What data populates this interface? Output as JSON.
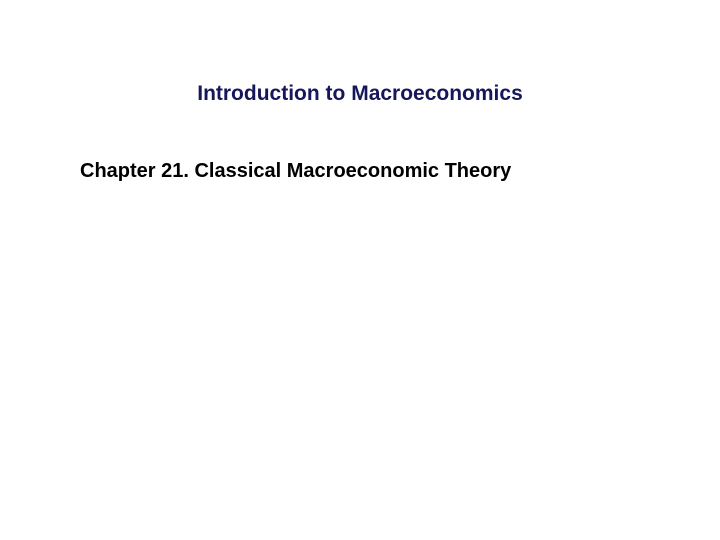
{
  "slide": {
    "title": "Introduction to Macroeconomics",
    "subtitle": "Chapter 21. Classical Macroeconomic Theory",
    "title_color": "#16165a",
    "subtitle_color": "#000000",
    "background_color": "#ffffff",
    "title_fontsize": 21,
    "subtitle_fontsize": 20,
    "title_fontweight": "bold",
    "subtitle_fontweight": "bold",
    "font_family": "Arial, Helvetica, sans-serif"
  }
}
